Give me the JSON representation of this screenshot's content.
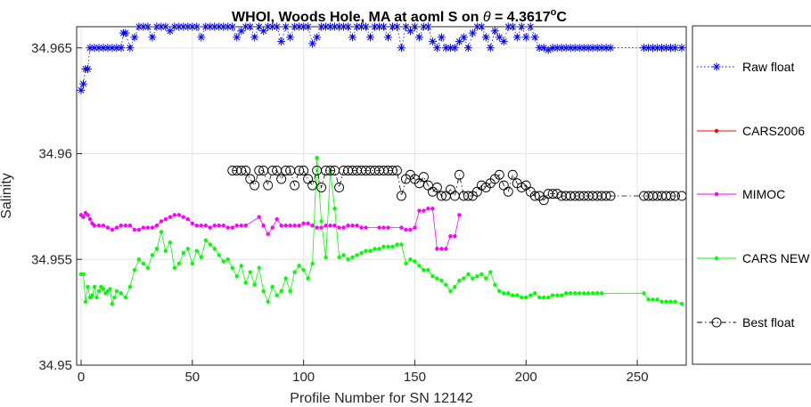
{
  "chart_data": {
    "type": "line",
    "title": "WHOI, Woods Hole, MA at aoml S on θ = 4.3617°C",
    "title_parts": {
      "prefix": "WHOI, Woods Hole, MA at aoml S on ",
      "theta": "θ",
      "eq": " = 4.3617",
      "degree": "o",
      "unit": "C"
    },
    "xlabel": "Profile Number for SN 12142",
    "ylabel": "Salinity",
    "xlim": [
      -2,
      272
    ],
    "ylim": [
      34.95,
      34.966
    ],
    "xticks": [
      0,
      50,
      100,
      150,
      200,
      250
    ],
    "xtick_labels": [
      "0",
      "50",
      "100",
      "150",
      "200",
      "250"
    ],
    "yticks": [
      34.95,
      34.955,
      34.96,
      34.965
    ],
    "ytick_labels": [
      "34.95",
      "34.955",
      "34.96",
      "34.965"
    ],
    "grid": true,
    "legend_position": "outside-right",
    "series": [
      {
        "name": "Raw float",
        "color": "#0000ff",
        "marker": "asterisk",
        "line": "dotted",
        "x": [
          0,
          1,
          2,
          3,
          4,
          6,
          8,
          10,
          12,
          14,
          16,
          18,
          19,
          20,
          22,
          24,
          26,
          28,
          30,
          32,
          34,
          36,
          38,
          40,
          42,
          44,
          46,
          48,
          50,
          52,
          54,
          56,
          58,
          60,
          62,
          64,
          66,
          68,
          70,
          72,
          74,
          76,
          78,
          80,
          82,
          84,
          86,
          88,
          90,
          92,
          94,
          96,
          98,
          100,
          102,
          104,
          106,
          108,
          110,
          112,
          114,
          116,
          118,
          120,
          122,
          124,
          126,
          128,
          130,
          132,
          134,
          136,
          138,
          140,
          142,
          144,
          146,
          148,
          150,
          152,
          154,
          156,
          158,
          160,
          162,
          164,
          166,
          168,
          170,
          172,
          174,
          176,
          178,
          180,
          182,
          184,
          186,
          188,
          190,
          192,
          194,
          196,
          198,
          200,
          202,
          204,
          206,
          208,
          210,
          212,
          214,
          216,
          218,
          220,
          222,
          224,
          226,
          228,
          230,
          232,
          234,
          236,
          238,
          253,
          255,
          257,
          259,
          261,
          263,
          265,
          267,
          270
        ],
        "y": [
          34.963,
          34.9633,
          34.964,
          34.964,
          34.965,
          34.965,
          34.965,
          34.965,
          34.965,
          34.965,
          34.965,
          34.965,
          34.9657,
          34.9657,
          34.965,
          34.9655,
          34.966,
          34.966,
          34.966,
          34.9655,
          34.966,
          34.966,
          34.966,
          34.9658,
          34.966,
          34.966,
          34.966,
          34.966,
          34.966,
          34.966,
          34.9655,
          34.966,
          34.966,
          34.966,
          34.966,
          34.966,
          34.966,
          34.966,
          34.9655,
          34.9658,
          34.966,
          34.966,
          34.9655,
          34.966,
          34.9658,
          34.966,
          34.966,
          34.966,
          34.9653,
          34.966,
          34.9655,
          34.966,
          34.966,
          34.966,
          34.966,
          34.9652,
          34.9655,
          34.966,
          34.966,
          34.966,
          34.966,
          34.966,
          34.966,
          34.966,
          34.9655,
          34.966,
          34.966,
          34.966,
          34.9655,
          34.966,
          34.966,
          34.966,
          34.9655,
          34.966,
          34.966,
          34.965,
          34.966,
          34.9658,
          34.966,
          34.9655,
          34.966,
          34.966,
          34.9653,
          34.965,
          34.9655,
          34.965,
          34.965,
          34.965,
          34.9653,
          34.9655,
          34.965,
          34.9657,
          34.966,
          34.966,
          34.9655,
          34.965,
          34.9658,
          34.9655,
          34.9653,
          34.966,
          34.966,
          34.9655,
          34.966,
          34.9655,
          34.966,
          34.9655,
          34.965,
          34.965,
          34.9649,
          34.965,
          34.965,
          34.965,
          34.965,
          34.965,
          34.965,
          34.965,
          34.965,
          34.965,
          34.965,
          34.965,
          34.965,
          34.965,
          34.965,
          34.965,
          34.965,
          34.965,
          34.965,
          34.965,
          34.965,
          34.965,
          34.965,
          34.965
        ]
      },
      {
        "name": "CARS2006",
        "color": "#ff0000",
        "marker": "dot",
        "line": "solid",
        "x": [],
        "y": []
      },
      {
        "name": "MIMOC",
        "color": "#ff00ff",
        "marker": "dot",
        "line": "solid",
        "x": [
          0,
          1,
          2,
          3,
          4,
          5,
          6,
          8,
          10,
          12,
          14,
          16,
          18,
          20,
          22,
          24,
          26,
          28,
          30,
          32,
          34,
          36,
          38,
          40,
          42,
          44,
          46,
          48,
          50,
          52,
          54,
          56,
          58,
          60,
          62,
          64,
          66,
          68,
          70,
          72,
          74,
          80,
          82,
          84,
          86,
          88,
          90,
          92,
          94,
          96,
          98,
          100,
          102,
          104,
          106,
          108,
          110,
          112,
          114,
          116,
          118,
          120,
          122,
          124,
          126,
          128,
          134,
          136,
          138,
          144,
          146,
          148,
          150,
          152,
          154,
          156,
          158,
          160,
          162,
          164,
          166,
          168,
          170
        ],
        "y": [
          34.9571,
          34.957,
          34.9572,
          34.9571,
          34.9569,
          34.9567,
          34.9566,
          34.9566,
          34.9566,
          34.9565,
          34.9564,
          34.9565,
          34.9566,
          34.9566,
          34.9566,
          34.9564,
          34.9564,
          34.9565,
          34.9565,
          34.9565,
          34.9566,
          34.9568,
          34.9569,
          34.957,
          34.9571,
          34.9571,
          34.957,
          34.9569,
          34.9567,
          34.9566,
          34.9566,
          34.9566,
          34.9565,
          34.9566,
          34.9566,
          34.9566,
          34.9565,
          34.9565,
          34.9566,
          34.9566,
          34.9566,
          34.957,
          34.9566,
          34.9562,
          34.9565,
          34.9569,
          34.9566,
          34.9566,
          34.9566,
          34.9566,
          34.9566,
          34.9567,
          34.9567,
          34.9566,
          34.9565,
          34.9565,
          34.9566,
          34.9566,
          34.9566,
          34.9565,
          34.9565,
          34.9566,
          34.9566,
          34.9566,
          34.9565,
          34.9565,
          34.9565,
          34.9565,
          34.9565,
          34.9565,
          34.9564,
          34.9564,
          34.9565,
          34.9573,
          34.9573,
          34.9574,
          34.9574,
          34.9555,
          34.9555,
          34.9555,
          34.9561,
          34.9561,
          34.9571
        ]
      },
      {
        "name": "CARS NEW",
        "color": "#00ff00",
        "marker": "dot",
        "line": "solid",
        "x": [
          0,
          1,
          2,
          3,
          4,
          5,
          6,
          7,
          8,
          9,
          10,
          11,
          12,
          13,
          14,
          15,
          16,
          18,
          20,
          22,
          24,
          26,
          28,
          30,
          32,
          34,
          36,
          38,
          40,
          42,
          44,
          46,
          48,
          50,
          52,
          54,
          56,
          58,
          60,
          62,
          64,
          66,
          68,
          70,
          72,
          74,
          76,
          78,
          80,
          82,
          84,
          86,
          88,
          90,
          92,
          94,
          96,
          98,
          100,
          102,
          104,
          106,
          108,
          110,
          112,
          114,
          116,
          118,
          120,
          122,
          124,
          126,
          128,
          130,
          132,
          134,
          136,
          138,
          140,
          142,
          144,
          146,
          148,
          150,
          152,
          154,
          156,
          158,
          160,
          162,
          164,
          166,
          168,
          170,
          172,
          174,
          176,
          178,
          180,
          182,
          184,
          186,
          188,
          190,
          192,
          194,
          196,
          198,
          200,
          202,
          204,
          206,
          208,
          210,
          212,
          214,
          216,
          218,
          220,
          222,
          224,
          226,
          228,
          230,
          232,
          234,
          253,
          255,
          257,
          259,
          261,
          263,
          265,
          267,
          270
        ],
        "y": [
          34.9543,
          34.9543,
          34.953,
          34.9537,
          34.9532,
          34.9533,
          34.9537,
          34.9532,
          34.9535,
          34.9537,
          34.9536,
          34.9534,
          34.9535,
          34.9536,
          34.9529,
          34.9532,
          34.9535,
          34.9534,
          34.9532,
          34.9537,
          34.9545,
          34.955,
          34.9548,
          34.9546,
          34.9552,
          34.9555,
          34.9563,
          34.9554,
          34.9558,
          34.9546,
          34.9548,
          34.9553,
          34.9555,
          34.9548,
          34.9554,
          34.9551,
          34.9559,
          34.9557,
          34.9555,
          34.9552,
          34.9549,
          34.955,
          34.9546,
          34.9542,
          34.9547,
          34.9539,
          34.9544,
          34.9538,
          34.9546,
          34.9535,
          34.953,
          34.9537,
          34.9533,
          34.9535,
          34.9541,
          34.9535,
          34.9544,
          34.9547,
          34.9545,
          34.9541,
          34.9548,
          34.9598,
          34.9568,
          34.9551,
          34.9592,
          34.9574,
          34.9551,
          34.9552,
          34.955,
          34.9551,
          34.9552,
          34.9553,
          34.9554,
          34.9554,
          34.9555,
          34.9555,
          34.9556,
          34.9556,
          34.9556,
          34.9557,
          34.9557,
          34.9548,
          34.955,
          34.9549,
          34.9547,
          34.9545,
          34.9545,
          34.9542,
          34.9541,
          34.954,
          34.9538,
          34.9535,
          34.9537,
          34.954,
          34.9541,
          34.9543,
          34.9541,
          34.9542,
          34.9543,
          34.9541,
          34.9544,
          34.9538,
          34.9535,
          34.9534,
          34.9534,
          34.9533,
          34.9533,
          34.9532,
          34.9532,
          34.9533,
          34.9534,
          34.9532,
          34.9532,
          34.9532,
          34.9533,
          34.9533,
          34.9533,
          34.9534,
          34.9534,
          34.9534,
          34.9534,
          34.9534,
          34.9534,
          34.9534,
          34.9534,
          34.9534,
          34.9534,
          34.9531,
          34.9531,
          34.9531,
          34.953,
          34.953,
          34.953,
          34.953,
          34.9529
        ]
      },
      {
        "name": "Best float",
        "color": "#000000",
        "marker": "circle",
        "line": "dashdot",
        "x": [
          68,
          70,
          72,
          74,
          76,
          78,
          80,
          82,
          84,
          86,
          88,
          90,
          92,
          94,
          96,
          98,
          100,
          102,
          104,
          106,
          108,
          110,
          112,
          114,
          116,
          118,
          120,
          122,
          124,
          126,
          128,
          130,
          132,
          134,
          136,
          138,
          140,
          142,
          144,
          146,
          148,
          150,
          152,
          154,
          156,
          158,
          160,
          162,
          164,
          166,
          168,
          170,
          172,
          174,
          176,
          178,
          180,
          182,
          184,
          186,
          188,
          190,
          192,
          194,
          196,
          198,
          200,
          202,
          204,
          206,
          208,
          210,
          212,
          214,
          216,
          218,
          220,
          222,
          224,
          226,
          228,
          230,
          232,
          234,
          236,
          238,
          253,
          255,
          257,
          259,
          261,
          263,
          265,
          267,
          270
        ],
        "y": [
          34.9592,
          34.9592,
          34.9592,
          34.9592,
          34.9588,
          34.9585,
          34.9592,
          34.9592,
          34.9585,
          34.9592,
          34.9592,
          34.9588,
          34.9592,
          34.9592,
          34.9585,
          34.9592,
          34.9592,
          34.9588,
          34.9585,
          34.9592,
          34.9584,
          34.9592,
          34.9592,
          34.9592,
          34.9584,
          34.9592,
          34.9592,
          34.9592,
          34.9592,
          34.9592,
          34.9592,
          34.9592,
          34.9592,
          34.9592,
          34.9592,
          34.9592,
          34.9592,
          34.9592,
          34.958,
          34.9588,
          34.959,
          34.9588,
          34.9586,
          34.9589,
          34.9585,
          34.9582,
          34.9584,
          34.958,
          34.958,
          34.9583,
          34.958,
          34.959,
          34.958,
          34.958,
          34.958,
          34.9582,
          34.9585,
          34.9584,
          34.9586,
          34.9588,
          34.959,
          34.9585,
          34.9582,
          34.959,
          34.9586,
          34.9584,
          34.9585,
          34.9582,
          34.958,
          34.958,
          34.9578,
          34.9581,
          34.9581,
          34.9581,
          34.958,
          34.958,
          34.958,
          34.958,
          34.958,
          34.958,
          34.958,
          34.958,
          34.958,
          34.958,
          34.958,
          34.958,
          34.958,
          34.958,
          34.958,
          34.958,
          34.958,
          34.958,
          34.958,
          34.958,
          34.958
        ]
      }
    ]
  }
}
